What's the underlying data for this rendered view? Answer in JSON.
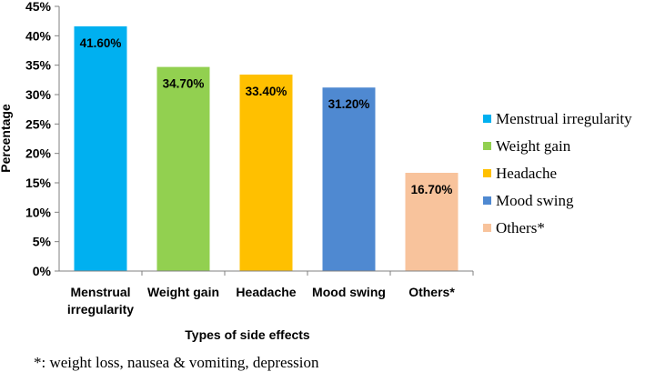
{
  "chart_data": {
    "type": "bar",
    "categories": [
      [
        "Menstrual",
        "irregularity"
      ],
      [
        "Weight gain"
      ],
      [
        "Headache"
      ],
      [
        "Mood swing"
      ],
      [
        "Others*"
      ]
    ],
    "values": [
      41.6,
      34.7,
      33.4,
      31.2,
      16.7
    ],
    "data_labels": [
      "41.60%",
      "34.70%",
      "33.40%",
      "31.20%",
      "16.70%"
    ],
    "colors": [
      "#00b0f0",
      "#92d050",
      "#ffc000",
      "#4f89d1",
      "#f8c39c"
    ],
    "xlabel": "Types of side effects",
    "ylabel": "Percentage",
    "ylim": [
      0,
      45
    ],
    "yticks": [
      "0%",
      "5%",
      "10%",
      "15%",
      "20%",
      "25%",
      "30%",
      "35%",
      "40%",
      "45%"
    ],
    "grid": false,
    "legend": {
      "placement": "right",
      "entries": [
        "Menstrual irregularity",
        "Weight gain",
        "Headache",
        "Mood swing",
        "Others*"
      ]
    }
  },
  "footnote": "*: weight loss, nausea & vomiting, depression"
}
